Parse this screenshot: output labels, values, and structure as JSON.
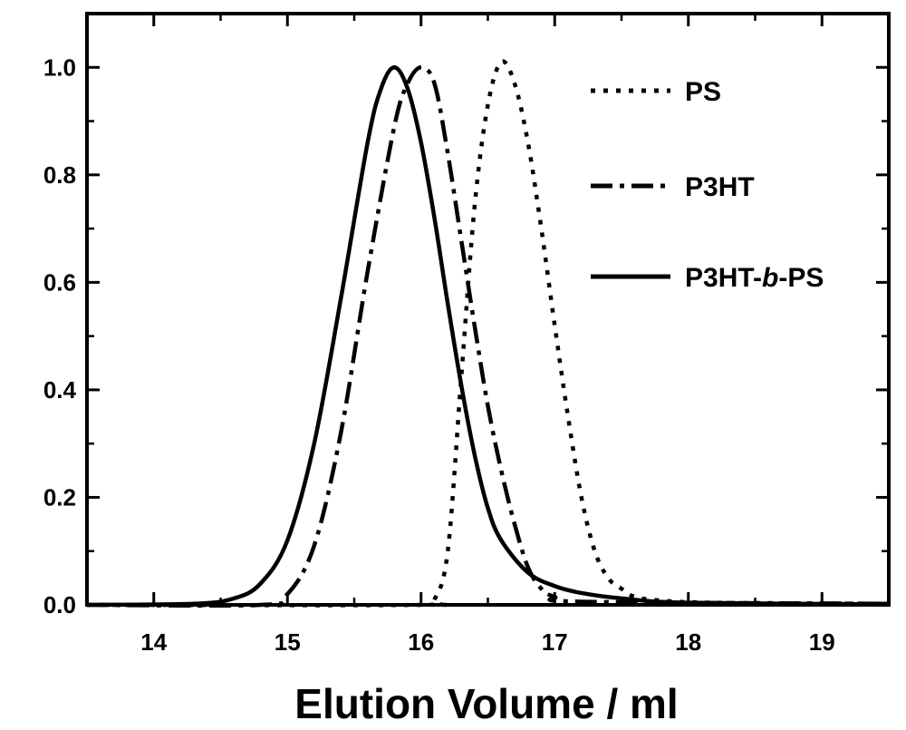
{
  "chart_data": {
    "type": "line",
    "title": "",
    "xlabel": "Elution Volume / ml",
    "ylabel": "",
    "xlim": [
      13.5,
      19.5
    ],
    "ylim": [
      0.0,
      1.1
    ],
    "x_ticks": [
      "14",
      "15",
      "16",
      "17",
      "18",
      "19"
    ],
    "y_ticks": [
      "0.0",
      "0.2",
      "0.4",
      "0.6",
      "0.8",
      "1.0"
    ],
    "grid": false,
    "legend_position": "top-right",
    "series": [
      {
        "name": "PS",
        "style": "dotted",
        "color": "#000000",
        "points": [
          [
            13.5,
            0.0
          ],
          [
            16.0,
            0.0
          ],
          [
            16.1,
            0.01
          ],
          [
            16.2,
            0.1
          ],
          [
            16.3,
            0.42
          ],
          [
            16.4,
            0.74
          ],
          [
            16.5,
            0.93
          ],
          [
            16.6,
            1.01
          ],
          [
            16.7,
            0.97
          ],
          [
            16.8,
            0.86
          ],
          [
            16.9,
            0.7
          ],
          [
            17.0,
            0.52
          ],
          [
            17.1,
            0.35
          ],
          [
            17.2,
            0.2
          ],
          [
            17.3,
            0.1
          ],
          [
            17.4,
            0.05
          ],
          [
            17.5,
            0.03
          ],
          [
            17.6,
            0.015
          ],
          [
            17.8,
            0.008
          ],
          [
            18.2,
            0.004
          ],
          [
            19.5,
            0.002
          ]
        ]
      },
      {
        "name": "P3HT",
        "style": "dash-dot",
        "color": "#000000",
        "points": [
          [
            13.5,
            0.0
          ],
          [
            14.8,
            0.0
          ],
          [
            15.0,
            0.02
          ],
          [
            15.2,
            0.11
          ],
          [
            15.4,
            0.32
          ],
          [
            15.6,
            0.62
          ],
          [
            15.8,
            0.89
          ],
          [
            15.9,
            0.97
          ],
          [
            16.0,
            1.0
          ],
          [
            16.1,
            0.97
          ],
          [
            16.2,
            0.84
          ],
          [
            16.3,
            0.68
          ],
          [
            16.4,
            0.52
          ],
          [
            16.5,
            0.37
          ],
          [
            16.6,
            0.25
          ],
          [
            16.7,
            0.15
          ],
          [
            16.8,
            0.07
          ],
          [
            16.9,
            0.03
          ],
          [
            17.0,
            0.015
          ],
          [
            17.2,
            0.006
          ],
          [
            19.5,
            0.002
          ]
        ]
      },
      {
        "name": "P3HT-b-PS",
        "style": "solid",
        "color": "#000000",
        "points": [
          [
            13.5,
            0.0
          ],
          [
            14.3,
            0.002
          ],
          [
            14.6,
            0.012
          ],
          [
            14.8,
            0.04
          ],
          [
            15.0,
            0.12
          ],
          [
            15.2,
            0.3
          ],
          [
            15.4,
            0.57
          ],
          [
            15.6,
            0.86
          ],
          [
            15.7,
            0.96
          ],
          [
            15.8,
            1.0
          ],
          [
            15.9,
            0.96
          ],
          [
            16.0,
            0.86
          ],
          [
            16.1,
            0.72
          ],
          [
            16.2,
            0.56
          ],
          [
            16.3,
            0.41
          ],
          [
            16.4,
            0.28
          ],
          [
            16.5,
            0.18
          ],
          [
            16.6,
            0.12
          ],
          [
            16.8,
            0.06
          ],
          [
            17.0,
            0.035
          ],
          [
            17.2,
            0.022
          ],
          [
            17.5,
            0.012
          ],
          [
            18.0,
            0.004
          ],
          [
            19.5,
            0.001
          ]
        ]
      }
    ]
  },
  "legend": [
    {
      "label_prefix": "PS",
      "label_italic": "",
      "label_suffix": ""
    },
    {
      "label_prefix": "P3HT",
      "label_italic": "",
      "label_suffix": ""
    },
    {
      "label_prefix": "P3HT-",
      "label_italic": "b",
      "label_suffix": "-PS"
    }
  ]
}
